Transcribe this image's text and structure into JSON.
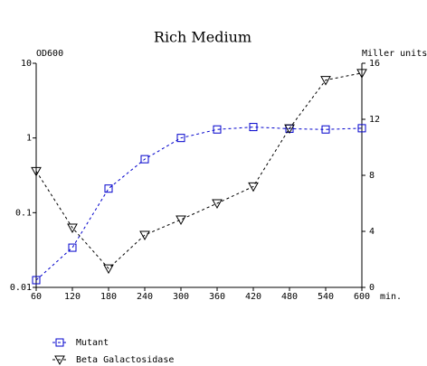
{
  "chart_data": {
    "type": "line",
    "title": "Rich Medium",
    "ylabel": "OD600",
    "y2label": "Miller units",
    "xlabel": "min.",
    "x": [
      60,
      120,
      180,
      240,
      300,
      360,
      420,
      480,
      540,
      600
    ],
    "xlim": [
      60,
      600
    ],
    "xticks": [
      60,
      120,
      180,
      240,
      300,
      360,
      420,
      480,
      540,
      600
    ],
    "ylim": [
      0.01,
      10
    ],
    "yticks": [
      0.01,
      0.1,
      1,
      10
    ],
    "ylog": true,
    "y2lim": [
      0,
      16
    ],
    "y2ticks": [
      0,
      4,
      8,
      12,
      16
    ],
    "series": [
      {
        "name": "Mutant",
        "color": "#0000cc",
        "marker": "square",
        "values": [
          0.0125,
          0.034,
          0.21,
          0.52,
          1.0,
          1.3,
          1.4,
          1.33,
          1.3,
          1.35
        ]
      },
      {
        "name": "Beta Galactosidase",
        "color": "#000000",
        "marker": "triangle-down",
        "axis": "y2",
        "values": [
          8.3,
          4.26,
          1.35,
          3.74,
          4.84,
          6.0,
          7.2,
          11.35,
          14.8,
          15.3
        ]
      }
    ]
  }
}
